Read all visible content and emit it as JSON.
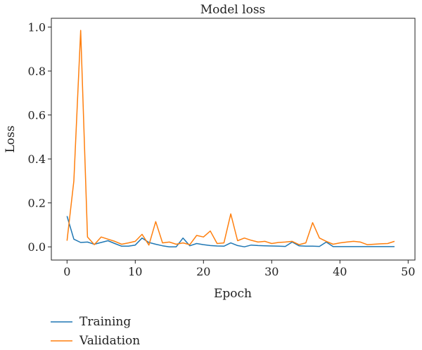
{
  "chart_data": {
    "type": "line",
    "title": "Model loss",
    "xlabel": "Epoch",
    "ylabel": "Loss",
    "xlim": [
      -2.3,
      51
    ],
    "ylim": [
      -0.06,
      1.04
    ],
    "xticks": [
      0,
      10,
      20,
      30,
      40,
      50
    ],
    "yticks": [
      0.0,
      0.2,
      0.4,
      0.6,
      0.8,
      1.0
    ],
    "xtick_labels": [
      "0",
      "10",
      "20",
      "30",
      "40",
      "50"
    ],
    "ytick_labels": [
      "0.0",
      "0.2",
      "0.4",
      "0.6",
      "0.8",
      "1.0"
    ],
    "grid": false,
    "legend_position": "bottom-left",
    "x": [
      0,
      1,
      2,
      3,
      4,
      5,
      6,
      7,
      8,
      9,
      10,
      11,
      12,
      13,
      14,
      15,
      16,
      17,
      18,
      19,
      20,
      21,
      22,
      23,
      24,
      25,
      26,
      27,
      28,
      29,
      30,
      31,
      32,
      33,
      34,
      35,
      36,
      37,
      38,
      39,
      40,
      41,
      42,
      43,
      44,
      45,
      46,
      47,
      48
    ],
    "series": [
      {
        "name": "Training",
        "color": "#1f77b4",
        "values": [
          0.14,
          0.035,
          0.02,
          0.022,
          0.012,
          0.02,
          0.028,
          0.015,
          0.003,
          0.003,
          0.008,
          0.04,
          0.02,
          0.012,
          0.005,
          0.0,
          0.0,
          0.04,
          0.005,
          0.015,
          0.01,
          0.006,
          0.004,
          0.003,
          0.018,
          0.006,
          0.0,
          0.008,
          0.006,
          0.005,
          0.004,
          0.003,
          0.002,
          0.022,
          0.005,
          0.003,
          0.003,
          0.002,
          0.022,
          0.001,
          0.001,
          0.001,
          0.001,
          0.001,
          0.001,
          0.001,
          0.001,
          0.001,
          0.001
        ]
      },
      {
        "name": "Validation",
        "color": "#ff7f0e",
        "values": [
          0.028,
          0.3,
          0.985,
          0.045,
          0.01,
          0.045,
          0.035,
          0.025,
          0.012,
          0.018,
          0.025,
          0.057,
          0.008,
          0.115,
          0.018,
          0.022,
          0.012,
          0.018,
          0.01,
          0.052,
          0.045,
          0.072,
          0.015,
          0.018,
          0.15,
          0.028,
          0.04,
          0.03,
          0.022,
          0.025,
          0.015,
          0.02,
          0.022,
          0.025,
          0.01,
          0.018,
          0.11,
          0.04,
          0.025,
          0.012,
          0.018,
          0.022,
          0.025,
          0.022,
          0.01,
          0.012,
          0.014,
          0.015,
          0.025
        ]
      }
    ]
  }
}
